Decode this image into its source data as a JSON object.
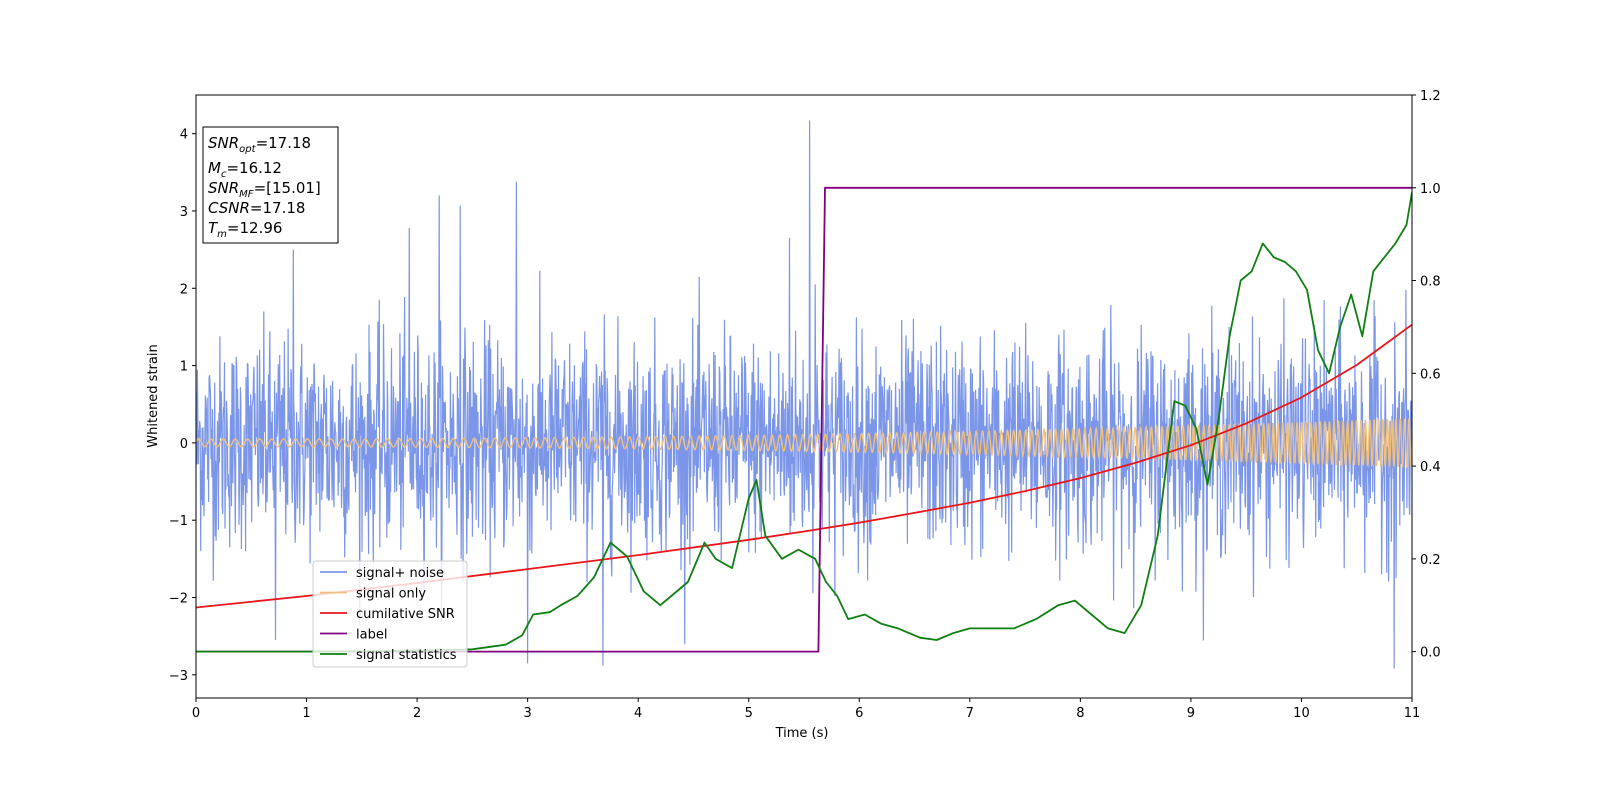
{
  "chart_data": {
    "type": "line",
    "xlabel": "Time (s)",
    "ylabel": "Whitened strain",
    "xlim": [
      0,
      11
    ],
    "ylim": [
      -3.3,
      4.5
    ],
    "y2lim": [
      -0.1,
      1.2
    ],
    "x_ticks": [
      "0",
      "1",
      "2",
      "3",
      "4",
      "5",
      "6",
      "7",
      "8",
      "9",
      "10",
      "11"
    ],
    "y_ticks": [
      "−3",
      "−2",
      "−1",
      "0",
      "1",
      "2",
      "3",
      "4"
    ],
    "y2_ticks": [
      "0.0",
      "0.2",
      "0.4",
      "0.6",
      "0.8",
      "1.0",
      "1.2"
    ],
    "grid": false,
    "legend_position": "lower-left",
    "info_box": {
      "line1_main": "SNR",
      "line1_sub": "opt",
      "line1_value": "=17.18",
      "line2_main": "M",
      "line2_sub": "c",
      "line2_value": "=16.12",
      "line3_main": "SNR",
      "line3_sub": "MF",
      "line3_value": "=[15.01]",
      "line4_main": "CSNR",
      "line4_value": "=17.18",
      "line5_main": "T",
      "line5_sub": "m",
      "line5_value": "=12.96"
    },
    "series": [
      {
        "name": "signal+ noise",
        "axis": "left",
        "color": "#7b96e8",
        "kind": "noise",
        "amplitude_range": [
          -2.9,
          4.17
        ],
        "notable_spikes": [
          [
            0.88,
            2.5
          ],
          [
            1.93,
            2.78
          ],
          [
            2.2,
            3.2
          ],
          [
            2.39,
            3.07
          ],
          [
            2.9,
            3.38
          ],
          [
            5.55,
            4.17
          ],
          [
            5.37,
            2.65
          ],
          [
            5.6,
            2.05
          ],
          [
            10.84,
            -2.92
          ],
          [
            3.68,
            -2.88
          ],
          [
            3.0,
            -2.85
          ],
          [
            0.72,
            -2.55
          ]
        ]
      },
      {
        "name": "signal only",
        "axis": "left",
        "color": "#f0c080",
        "kind": "chirp",
        "amplitude_start": 0.05,
        "amplitude_end": 0.32,
        "frequency_start": 9,
        "frequency_end": 26
      },
      {
        "name": "cumilative SNR",
        "axis": "right",
        "color": "#e8161b",
        "x": [
          0,
          1,
          2,
          3,
          4,
          5,
          5.5,
          6,
          6.5,
          7,
          7.5,
          8,
          8.5,
          9,
          9.5,
          10,
          10.5,
          11
        ],
        "y": [
          0.095,
          0.12,
          0.148,
          0.178,
          0.208,
          0.241,
          0.259,
          0.278,
          0.299,
          0.321,
          0.346,
          0.374,
          0.407,
          0.445,
          0.492,
          0.548,
          0.618,
          0.705
        ]
      },
      {
        "name": "label",
        "axis": "right",
        "color": "#800080",
        "x": [
          0,
          5.63,
          5.69,
          11
        ],
        "y": [
          0.0,
          0.0,
          1.0,
          1.0
        ]
      },
      {
        "name": "signal statistics",
        "axis": "right",
        "color": "#0f7f12",
        "x": [
          0,
          1,
          2,
          2.5,
          2.8,
          2.95,
          3.05,
          3.2,
          3.3,
          3.45,
          3.6,
          3.75,
          3.9,
          4.05,
          4.2,
          4.3,
          4.45,
          4.6,
          4.7,
          4.85,
          5.0,
          5.07,
          5.15,
          5.3,
          5.45,
          5.6,
          5.7,
          5.8,
          5.9,
          6.05,
          6.2,
          6.35,
          6.55,
          6.7,
          6.85,
          7.0,
          7.2,
          7.4,
          7.6,
          7.8,
          7.95,
          8.1,
          8.25,
          8.4,
          8.55,
          8.7,
          8.85,
          8.95,
          9.05,
          9.15,
          9.25,
          9.35,
          9.45,
          9.55,
          9.65,
          9.75,
          9.85,
          9.95,
          10.05,
          10.15,
          10.25,
          10.35,
          10.45,
          10.55,
          10.65,
          10.75,
          10.85,
          10.95,
          11.0
        ],
        "y": [
          0.0,
          0.0,
          0.002,
          0.005,
          0.015,
          0.035,
          0.08,
          0.085,
          0.1,
          0.12,
          0.16,
          0.235,
          0.205,
          0.13,
          0.1,
          0.12,
          0.15,
          0.235,
          0.2,
          0.18,
          0.33,
          0.37,
          0.25,
          0.2,
          0.22,
          0.2,
          0.15,
          0.12,
          0.07,
          0.08,
          0.06,
          0.05,
          0.03,
          0.025,
          0.04,
          0.05,
          0.05,
          0.05,
          0.07,
          0.1,
          0.11,
          0.08,
          0.05,
          0.04,
          0.1,
          0.25,
          0.54,
          0.53,
          0.48,
          0.36,
          0.5,
          0.68,
          0.8,
          0.82,
          0.88,
          0.85,
          0.84,
          0.82,
          0.78,
          0.65,
          0.6,
          0.7,
          0.77,
          0.68,
          0.82,
          0.85,
          0.88,
          0.92,
          0.99
        ]
      }
    ]
  }
}
